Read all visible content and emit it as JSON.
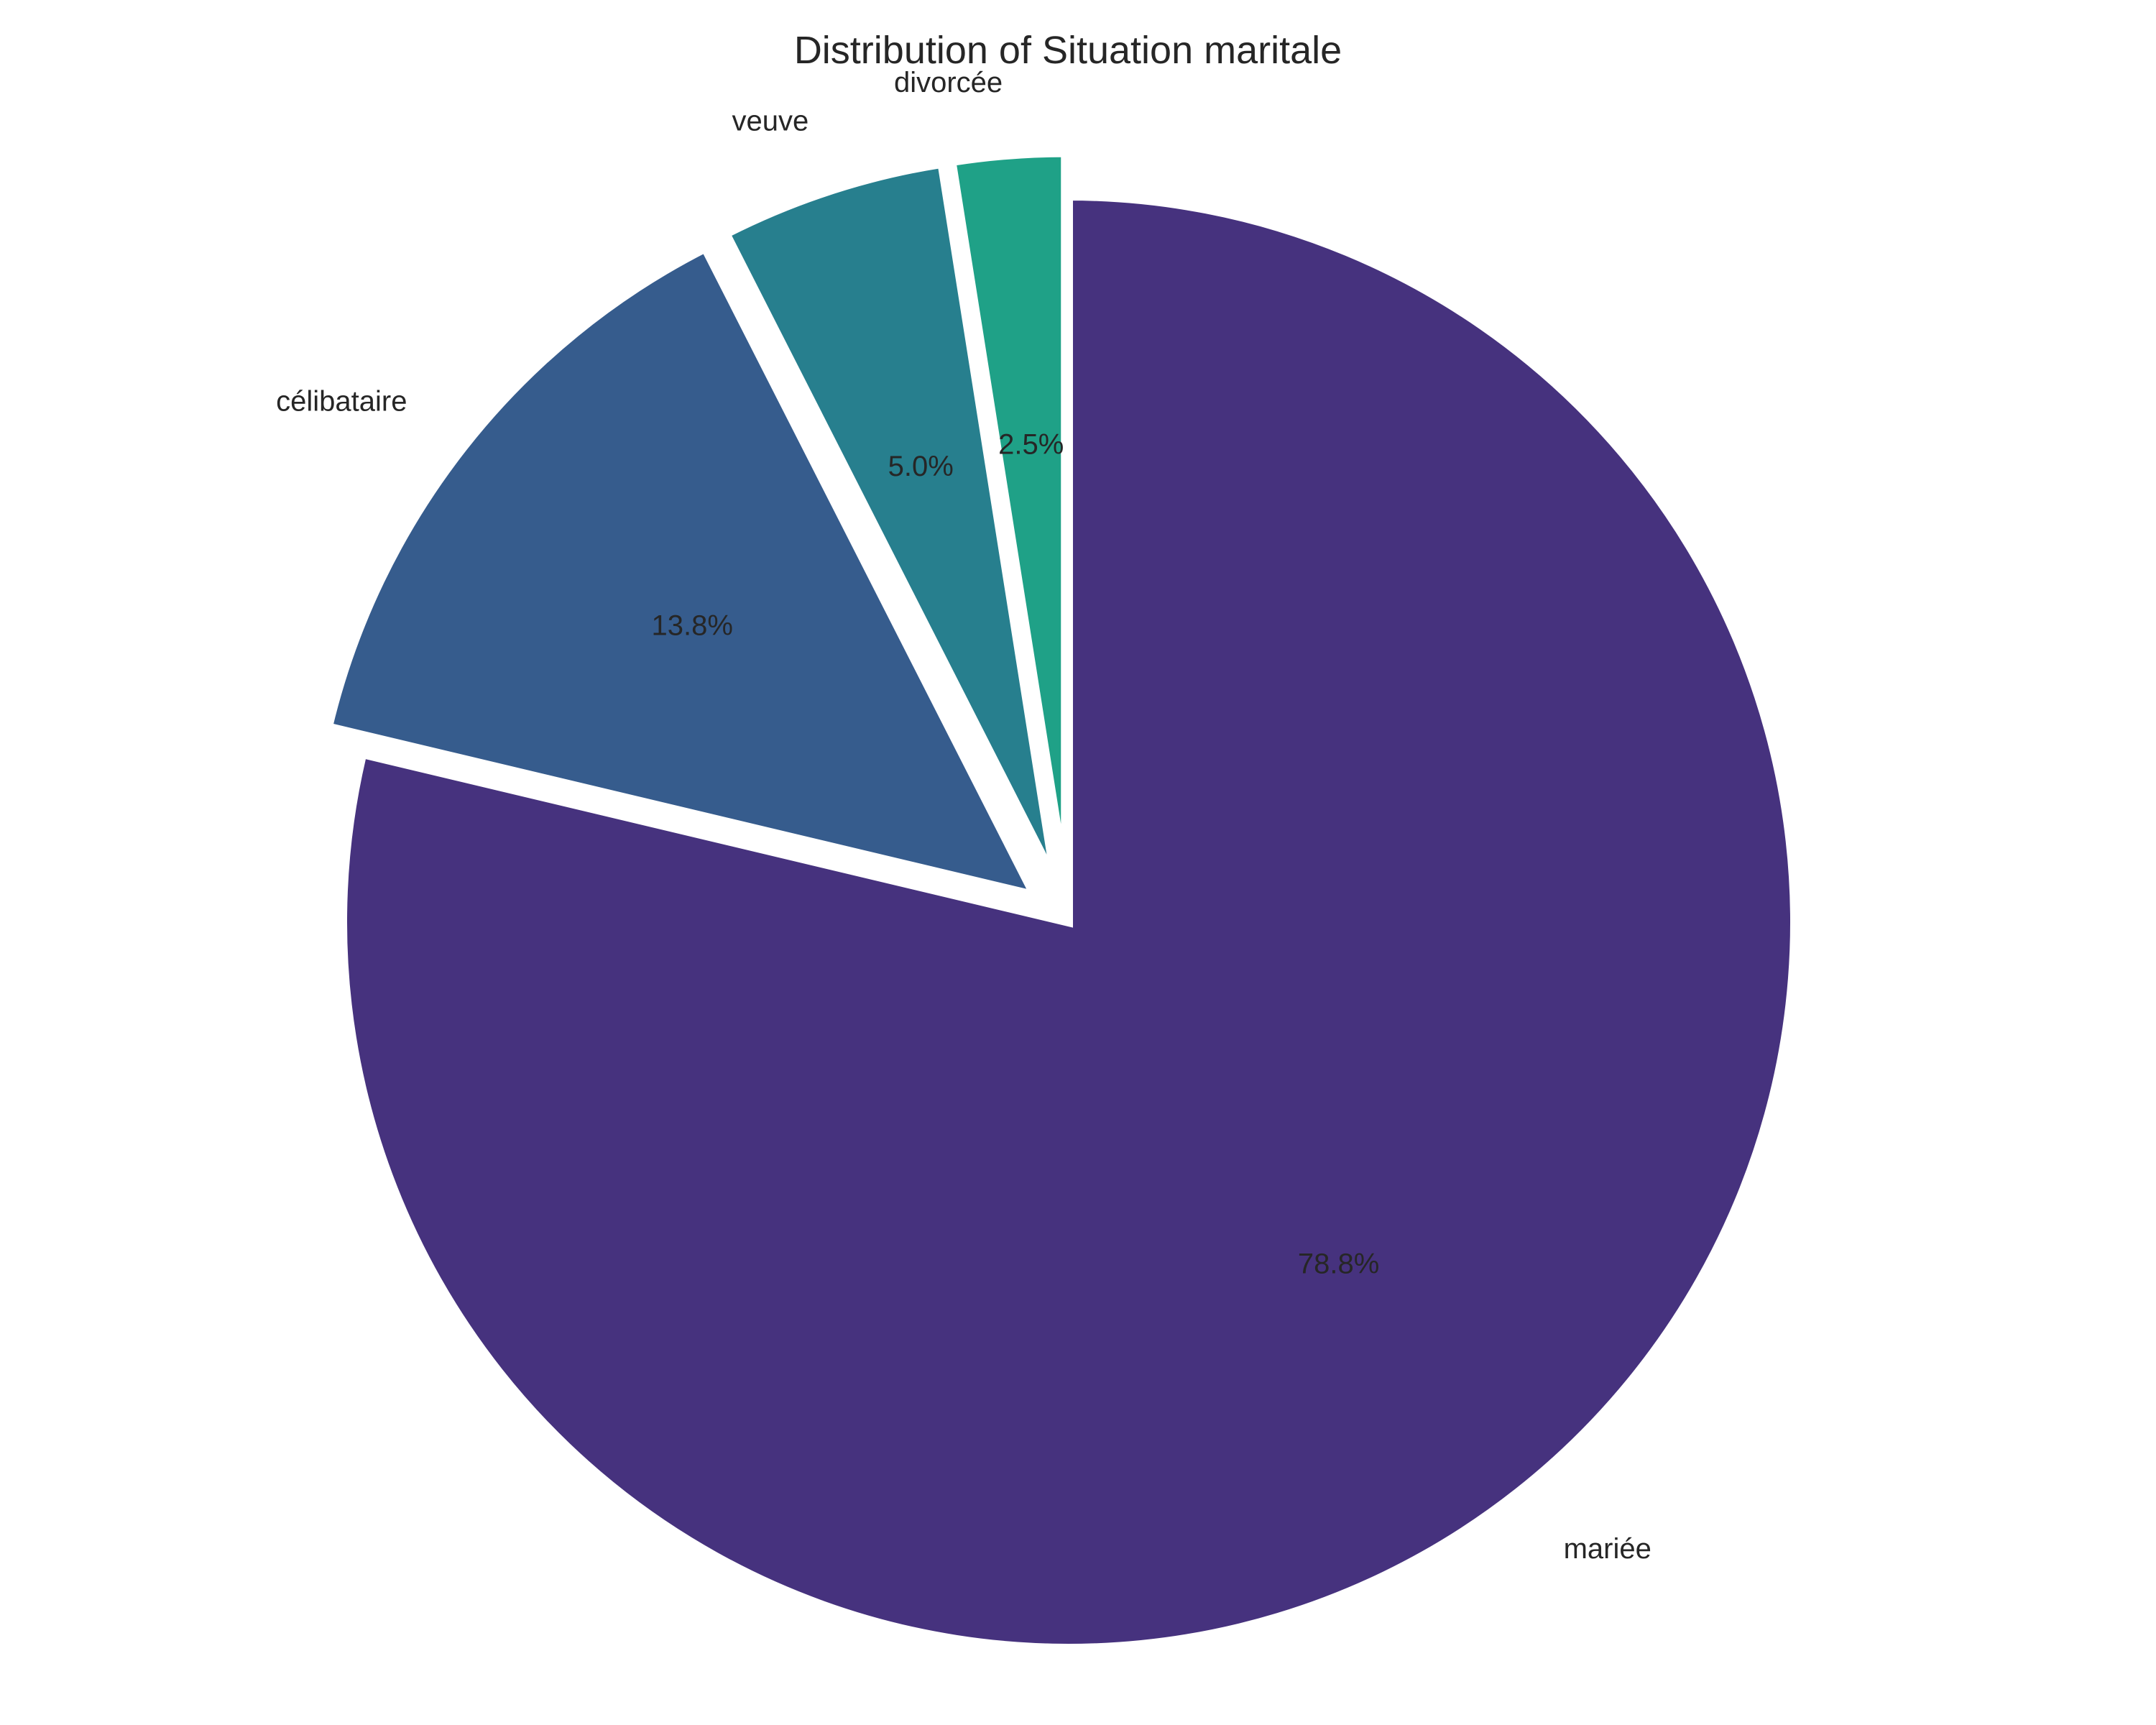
{
  "chart_data": {
    "type": "pie",
    "title": "Distribution of Situation maritale",
    "categories": [
      "mariée",
      "célibataire",
      "veuve",
      "divorcée"
    ],
    "values": [
      78.8,
      13.8,
      5.0,
      2.5
    ],
    "value_labels": [
      "78.8%",
      "13.8%",
      "5.0%",
      "2.5%"
    ],
    "colors": [
      "#46327e",
      "#365c8d",
      "#277f8e",
      "#1fa187"
    ],
    "start": "top",
    "direction": "clockwise",
    "exploded": true,
    "legend": "none"
  }
}
